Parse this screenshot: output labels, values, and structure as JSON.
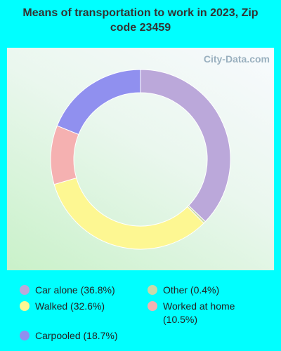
{
  "chart_data": {
    "type": "donut",
    "title": "Means of transportation to work in 2023, Zip code 23459",
    "watermark": "City-Data.com",
    "labels": [
      "Car alone (36.8%)",
      "Other (0.4%)",
      "Walked (32.6%)",
      "Worked at home (10.5%)",
      "Carpooled (18.7%)"
    ],
    "values": [
      36.8,
      0.4,
      32.6,
      10.5,
      18.7
    ],
    "colors": [
      "#bba8da",
      "#c9d9a9",
      "#fdf792",
      "#f5b1b1",
      "#9090ef"
    ]
  }
}
